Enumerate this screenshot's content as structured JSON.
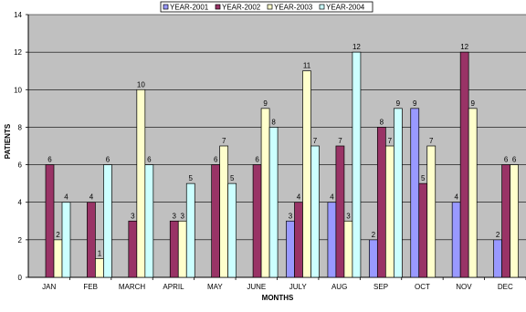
{
  "chart_data": {
    "type": "bar",
    "categories": [
      "JAN",
      "FEB",
      "MARCH",
      "APRIL",
      "MAY",
      "JUNE",
      "JULY",
      "AUG",
      "SEP",
      "OCT",
      "NOV",
      "DEC"
    ],
    "series": [
      {
        "name": "YEAR-2001",
        "color": "#9999ff",
        "values": [
          null,
          null,
          null,
          null,
          null,
          null,
          3,
          4,
          2,
          9,
          4,
          2
        ]
      },
      {
        "name": "YEAR-2002",
        "color": "#993366",
        "values": [
          6,
          4,
          3,
          3,
          6,
          6,
          4,
          7,
          8,
          5,
          12,
          6
        ]
      },
      {
        "name": "YEAR-2003",
        "color": "#ffffcc",
        "values": [
          2,
          1,
          10,
          3,
          7,
          9,
          11,
          3,
          7,
          7,
          9,
          6
        ]
      },
      {
        "name": "YEAR-2004",
        "color": "#ccffff",
        "values": [
          4,
          6,
          6,
          5,
          5,
          8,
          7,
          12,
          9,
          null,
          null,
          null
        ]
      }
    ],
    "xlabel": "MONTHS",
    "ylabel": "PATIENTS",
    "ylim": [
      0,
      14
    ],
    "yticks": [
      0,
      2,
      4,
      6,
      8,
      10,
      12,
      14
    ],
    "grid": true,
    "legend": "top-center",
    "plot_background": "#c0c0c0"
  }
}
